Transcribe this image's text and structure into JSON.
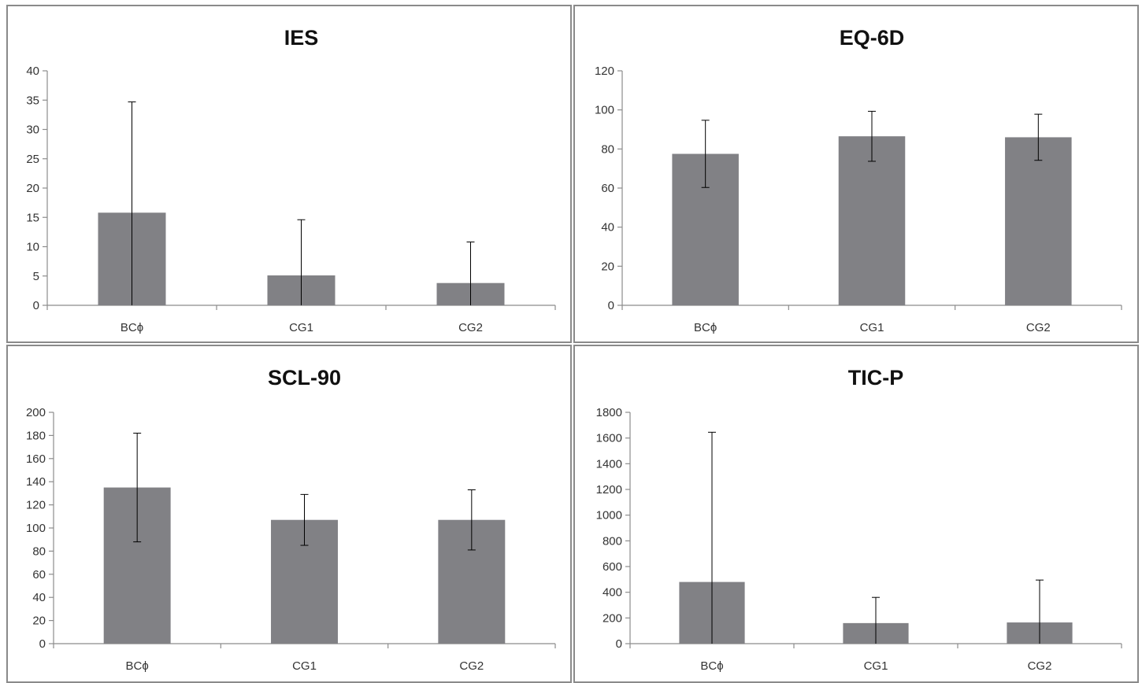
{
  "chart_data": [
    {
      "type": "bar",
      "title": "IES",
      "categories": [
        "BCϕ",
        "CG1",
        "CG2"
      ],
      "values": [
        15.8,
        5.1,
        3.8
      ],
      "errors": [
        18.9,
        9.5,
        7.0
      ],
      "ylim": [
        0,
        40
      ],
      "yticks": [
        "0",
        "5",
        "10",
        "15",
        "20",
        "25",
        "30",
        "35",
        "40"
      ],
      "bar_color": "#818185",
      "grid": false,
      "xlabel": "",
      "ylabel": ""
    },
    {
      "type": "bar",
      "title": "EQ-6D",
      "categories": [
        "BCϕ",
        "CG1",
        "CG2"
      ],
      "values": [
        77.5,
        86.5,
        86.0
      ],
      "errors": [
        17.2,
        12.8,
        11.8
      ],
      "ylim": [
        0,
        120
      ],
      "yticks": [
        "0",
        "20",
        "40",
        "60",
        "80",
        "100",
        "120"
      ],
      "bar_color": "#818185",
      "grid": false,
      "xlabel": "",
      "ylabel": ""
    },
    {
      "type": "bar",
      "title": "SCL-90",
      "categories": [
        "BCϕ",
        "CG1",
        "CG2"
      ],
      "values": [
        135,
        107,
        107
      ],
      "errors": [
        47,
        22,
        26
      ],
      "ylim": [
        0,
        200
      ],
      "yticks": [
        "0",
        "20",
        "40",
        "60",
        "80",
        "100",
        "120",
        "140",
        "160",
        "180",
        "200"
      ],
      "bar_color": "#818185",
      "grid": false,
      "xlabel": "",
      "ylabel": ""
    },
    {
      "type": "bar",
      "title": "TIC-P",
      "categories": [
        "BCϕ",
        "CG1",
        "CG2"
      ],
      "values": [
        480,
        160,
        165
      ],
      "errors": [
        1165,
        200,
        330
      ],
      "ylim": [
        0,
        1800
      ],
      "yticks": [
        "0",
        "200",
        "400",
        "600",
        "800",
        "1000",
        "1200",
        "1400",
        "1600",
        "1800"
      ],
      "bar_color": "#818185",
      "grid": false,
      "xlabel": "",
      "ylabel": ""
    }
  ]
}
